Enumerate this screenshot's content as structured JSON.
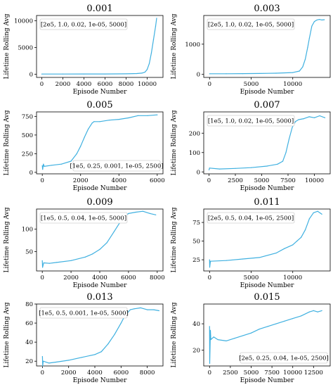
{
  "chart_data": [
    {
      "type": "line",
      "title": "0.001",
      "xlabel": "Episode Number",
      "ylabel": "Lifetime Rolling Avg",
      "legend": "[2e5, 1.0, 0.02, 1e-05, 5000]",
      "legend_position": "top-left",
      "line_color": "#3fb0e0",
      "xlim": [
        -500,
        11500
      ],
      "ylim": [
        -600,
        11000
      ],
      "xticks": [
        0,
        2000,
        4000,
        6000,
        8000,
        10000
      ],
      "yticks": [
        0,
        5000,
        10000
      ],
      "x": [
        0,
        2000,
        4000,
        6000,
        8000,
        9000,
        9500,
        9800,
        10000,
        10200,
        10400,
        10600,
        10800,
        10900
      ],
      "y": [
        30,
        35,
        40,
        50,
        70,
        120,
        200,
        400,
        900,
        2000,
        4000,
        6500,
        9000,
        10500
      ]
    },
    {
      "type": "line",
      "title": "0.003",
      "xlabel": "Episode Number",
      "ylabel": "Lifetime Rolling Avg",
      "legend": "[2e5, 1.0, 0.02, 1e-05, 5000]",
      "legend_position": "top-left",
      "line_color": "#3fb0e0",
      "xlim": [
        -700,
        14500
      ],
      "ylim": [
        -100,
        1950
      ],
      "xticks": [
        0,
        5000,
        10000
      ],
      "yticks": [
        0,
        1000
      ],
      "x": [
        0,
        2000,
        4000,
        6000,
        8000,
        10000,
        10800,
        11200,
        11500,
        11800,
        12000,
        12300,
        12600,
        12900,
        13200,
        13500,
        13800
      ],
      "y": [
        20,
        22,
        25,
        30,
        40,
        60,
        110,
        250,
        500,
        900,
        1200,
        1600,
        1750,
        1800,
        1820,
        1800,
        1810
      ]
    },
    {
      "type": "line",
      "title": "0.005",
      "xlabel": "Episode Number",
      "ylabel": "Lifetime Rolling Avg",
      "legend": "[1e5, 0.25, 0.001, 1e-05, 2500]",
      "legend_position": "bottom-right",
      "line_color": "#3fb0e0",
      "xlim": [
        -300,
        6300
      ],
      "ylim": [
        -20,
        810
      ],
      "xticks": [
        0,
        2000,
        4000,
        6000
      ],
      "yticks": [
        0,
        250,
        500,
        750
      ],
      "x": [
        0,
        20,
        60,
        100,
        500,
        1000,
        1500,
        1800,
        2000,
        2200,
        2400,
        2600,
        2700,
        3000,
        3500,
        4000,
        4500,
        5000,
        5500,
        6000
      ],
      "y": [
        90,
        40,
        110,
        80,
        95,
        110,
        150,
        250,
        350,
        470,
        580,
        660,
        680,
        680,
        700,
        710,
        730,
        760,
        760,
        770
      ]
    },
    {
      "type": "line",
      "title": "0.007",
      "xlabel": "Episode Number",
      "ylabel": "Lifetime Rolling Avg",
      "legend": "[1e5, 1.0, 0.02, 1e-05, 5000]",
      "legend_position": "top-left",
      "line_color": "#3fb0e0",
      "xlim": [
        -500,
        11500
      ],
      "ylim": [
        -10,
        310
      ],
      "xticks": [
        0,
        2500,
        5000,
        7500,
        10000
      ],
      "yticks": [
        0,
        100,
        200
      ],
      "x": [
        0,
        50,
        1000,
        2500,
        4000,
        5500,
        6500,
        7000,
        7300,
        7600,
        7900,
        8200,
        8500,
        9000,
        9500,
        10000,
        10500,
        11000
      ],
      "y": [
        10,
        20,
        15,
        18,
        22,
        30,
        40,
        55,
        100,
        170,
        230,
        260,
        270,
        275,
        285,
        280,
        290,
        280
      ]
    },
    {
      "type": "line",
      "title": "0.009",
      "xlabel": "Episode Number",
      "ylabel": "Lifetime Rolling Avg",
      "legend": "[1e5, 0.5, 0.04, 1e-05, 5000]",
      "legend_position": "top-left",
      "line_color": "#3fb0e0",
      "xlim": [
        -400,
        8400
      ],
      "ylim": [
        7,
        145
      ],
      "xticks": [
        0,
        2000,
        4000,
        6000,
        8000
      ],
      "yticks": [
        50,
        100
      ],
      "x": [
        0,
        20,
        100,
        500,
        1000,
        2000,
        3000,
        3500,
        4000,
        4500,
        5000,
        5500,
        5800,
        6000,
        6500,
        7000,
        7500,
        7900
      ],
      "y": [
        30,
        15,
        25,
        24,
        26,
        30,
        38,
        45,
        55,
        70,
        95,
        120,
        130,
        135,
        138,
        140,
        135,
        132
      ]
    },
    {
      "type": "line",
      "title": "0.011",
      "xlabel": "Episode Number",
      "ylabel": "Lifetime Rolling Avg",
      "legend": "[2e5, 0.5, 0.04, 1e-05, 2500]",
      "legend_position": "top-left",
      "line_color": "#3fb0e0",
      "xlim": [
        -700,
        14500
      ],
      "ylim": [
        10,
        93
      ],
      "xticks": [
        0,
        5000,
        10000
      ],
      "yticks": [
        25,
        50,
        75
      ],
      "x": [
        0,
        20,
        100,
        2000,
        4000,
        6000,
        8000,
        9000,
        10000,
        10500,
        11000,
        11500,
        12000,
        12500,
        13000,
        13500
      ],
      "y": [
        25,
        15,
        23,
        24,
        26,
        28,
        34,
        40,
        45,
        50,
        55,
        65,
        80,
        88,
        90,
        86
      ]
    },
    {
      "type": "line",
      "title": "0.013",
      "xlabel": "Episode Number",
      "ylabel": "Lifetime Rolling Avg",
      "legend": "[1e5, 0.5, 0.001, 1e-05, 5000]",
      "legend_position": "top-left",
      "line_color": "#3fb0e0",
      "xlim": [
        -450,
        9200
      ],
      "ylim": [
        15,
        80
      ],
      "xticks": [
        0,
        2000,
        4000,
        6000,
        8000
      ],
      "yticks": [
        20,
        40,
        60,
        80
      ],
      "x": [
        0,
        20,
        60,
        500,
        1000,
        2000,
        3000,
        4000,
        4500,
        5000,
        5500,
        6000,
        6300,
        6700,
        7000,
        7500,
        8000,
        8500,
        8900
      ],
      "y": [
        25,
        15,
        20,
        18,
        19,
        21,
        24,
        27,
        30,
        38,
        48,
        60,
        68,
        74,
        75,
        76,
        74,
        74,
        73
      ]
    },
    {
      "type": "line",
      "title": "0.015",
      "xlabel": "Episode Number",
      "ylabel": "Lifetime Rolling Avg",
      "legend": "[2e5, 0.25, 0.04, 1e-05, 2500]",
      "legend_position": "bottom-right",
      "line_color": "#3fb0e0",
      "xlim": [
        -700,
        14500
      ],
      "ylim": [
        8,
        55
      ],
      "xticks": [
        0,
        2500,
        5000,
        7500,
        10000,
        12500
      ],
      "yticks": [
        20,
        40
      ],
      "x": [
        0,
        20,
        50,
        100,
        150,
        500,
        1000,
        2000,
        3000,
        4000,
        5000,
        6000,
        7000,
        8000,
        9000,
        10000,
        11000,
        12000,
        12500,
        13000,
        13500
      ],
      "y": [
        38,
        10,
        20,
        35,
        28,
        30,
        28,
        27,
        29,
        31,
        33,
        36,
        38,
        40,
        42,
        44,
        46,
        49,
        50,
        49,
        50
      ]
    }
  ]
}
